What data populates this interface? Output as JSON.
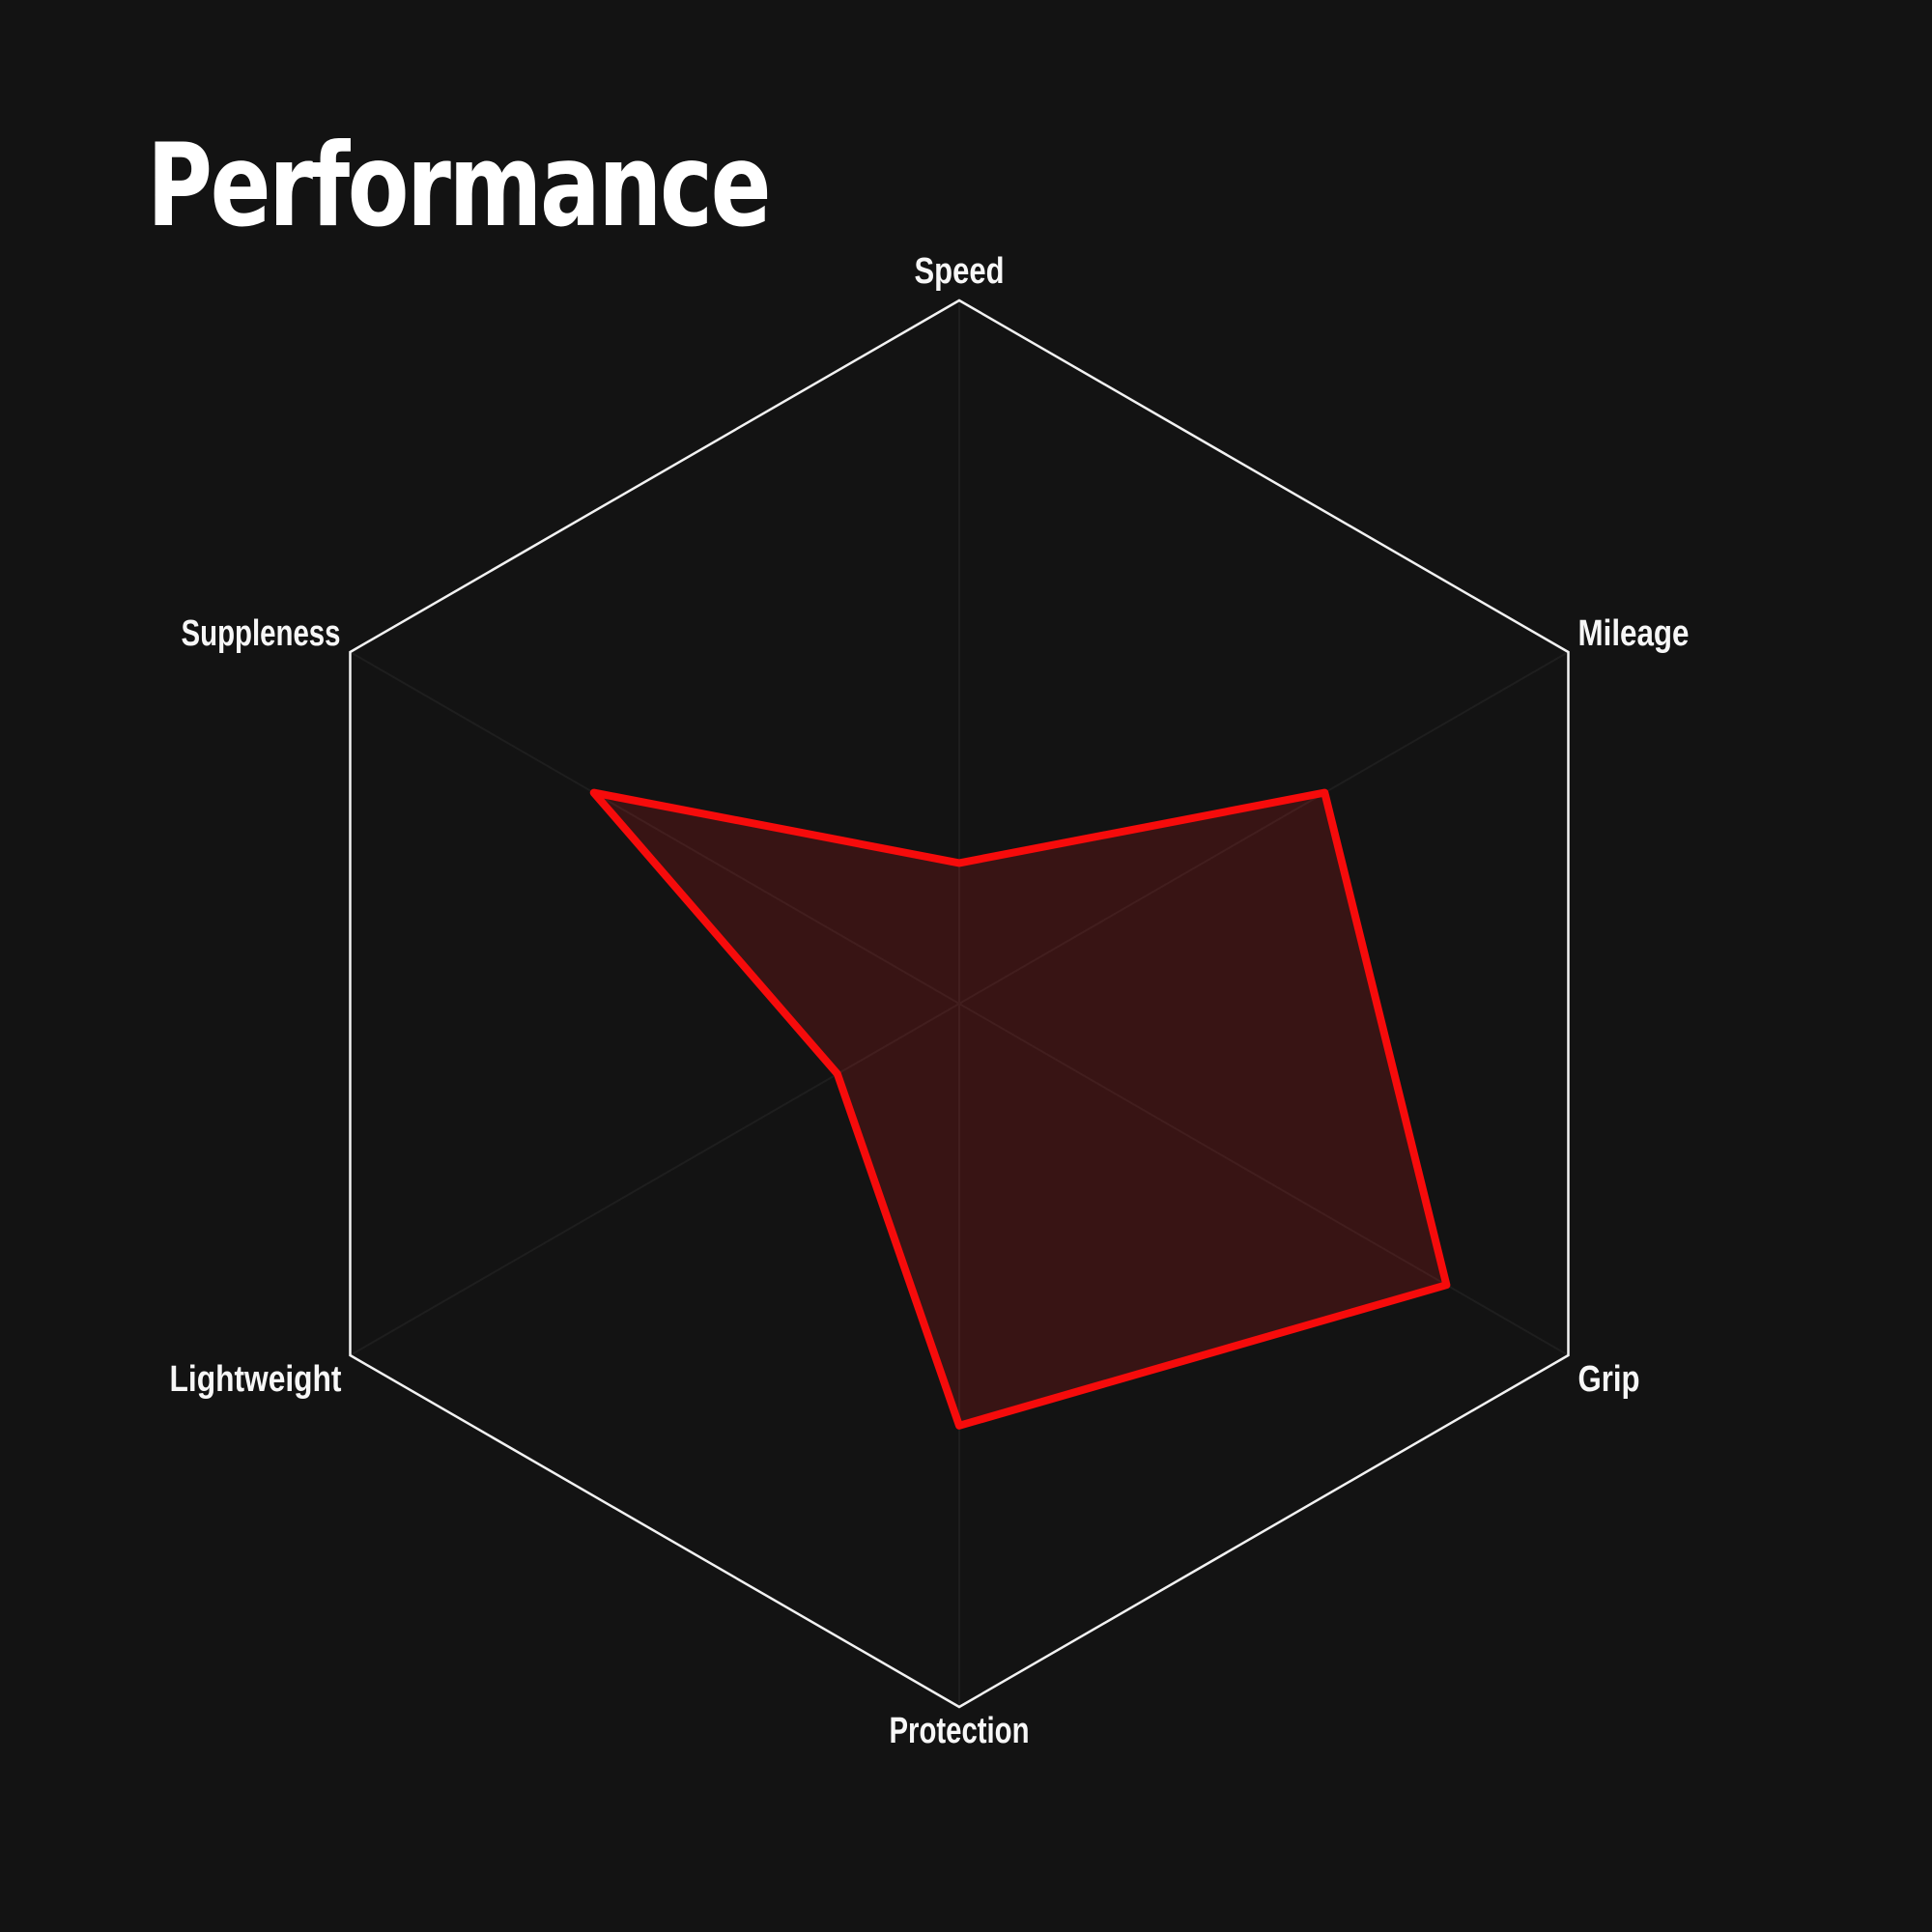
{
  "title": "Performance",
  "chart_data": {
    "type": "radar",
    "title": "Performance",
    "categories": [
      "Speed",
      "Mileage",
      "Grip",
      "Protection",
      "Lightweight",
      "Suppleness"
    ],
    "values": [
      2,
      6,
      8,
      6,
      2,
      6
    ],
    "max": 10,
    "axis_start": "top",
    "direction": "clockwise",
    "grid": "outer-hexagon-only",
    "legend": "none",
    "colors": {
      "background": "#131313",
      "grid_line": "#f2f2f2",
      "spoke_line": "#1e1e1e",
      "series_stroke": "#f60b0b",
      "series_fill": "rgba(255, 30, 30, 0.16)",
      "label_text": "#f7f7f7",
      "title_text": "#ffffff"
    }
  }
}
